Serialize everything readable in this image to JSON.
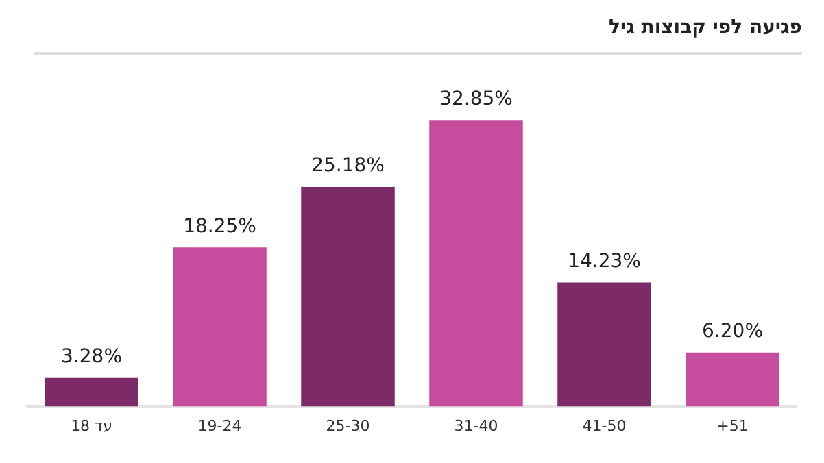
{
  "chart_data": {
    "type": "bar",
    "title": "פגיעה לפי קבוצות גיל",
    "categories": [
      "עד 18",
      "19-24",
      "25-30",
      "31-40",
      "41-50",
      "+51"
    ],
    "values": [
      3.28,
      18.25,
      25.18,
      32.85,
      14.23,
      6.2
    ],
    "colors": [
      "#7d2a68",
      "#c64d9e",
      "#7d2a68",
      "#c64d9e",
      "#7d2a68",
      "#c64d9e"
    ],
    "value_labels": [
      "3.28%",
      "18.25%",
      "25.18%",
      "32.85%",
      "14.23%",
      "6.20%"
    ],
    "grid": false,
    "legend": false
  }
}
